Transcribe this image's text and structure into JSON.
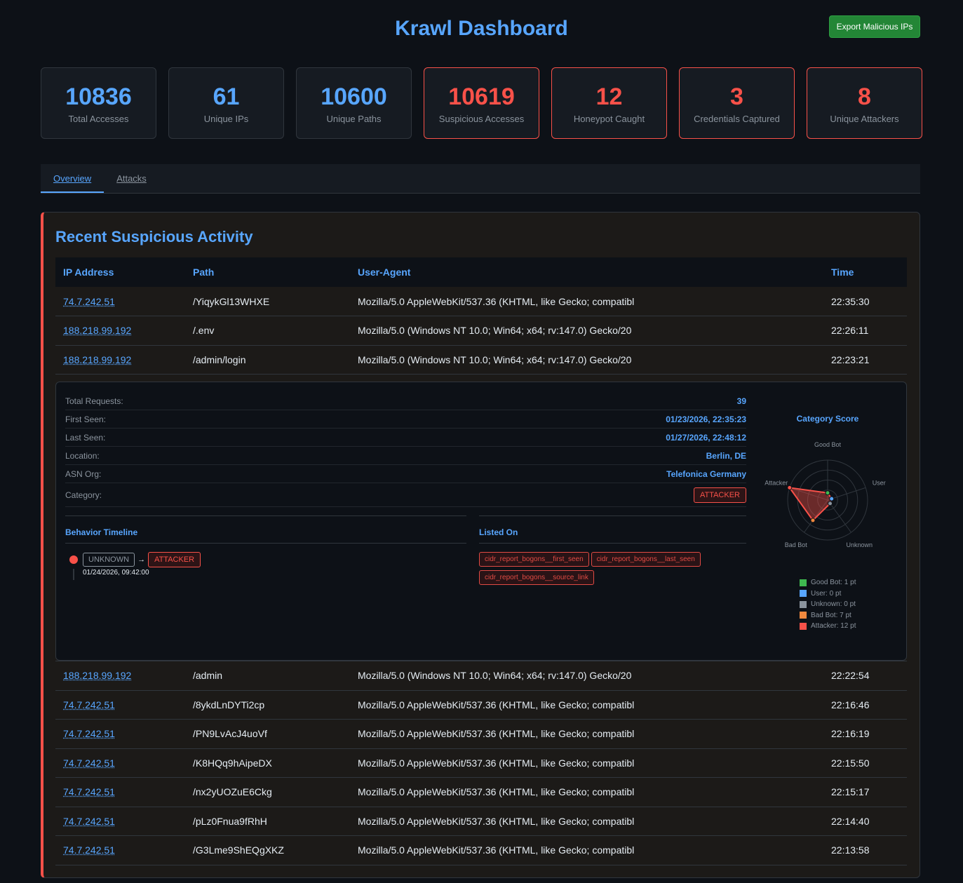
{
  "header": {
    "title": "Krawl Dashboard",
    "export_label": "Export Malicious IPs"
  },
  "stats": [
    {
      "value": "10836",
      "label": "Total Accesses",
      "alert": false
    },
    {
      "value": "61",
      "label": "Unique IPs",
      "alert": false
    },
    {
      "value": "10600",
      "label": "Unique Paths",
      "alert": false
    },
    {
      "value": "10619",
      "label": "Suspicious Accesses",
      "alert": true
    },
    {
      "value": "12",
      "label": "Honeypot Caught",
      "alert": true
    },
    {
      "value": "3",
      "label": "Credentials Captured",
      "alert": true
    },
    {
      "value": "8",
      "label": "Unique Attackers",
      "alert": true
    }
  ],
  "tabs": [
    {
      "label": "Overview",
      "active": true
    },
    {
      "label": "Attacks",
      "active": false
    }
  ],
  "section": {
    "title": "Recent Suspicious Activity",
    "columns": [
      "IP Address",
      "Path",
      "User-Agent",
      "Time"
    ],
    "rows": [
      {
        "ip": "74.7.242.51",
        "path": "/YiqykGl13WHXE",
        "ua": "Mozilla/5.0 AppleWebKit/537.36 (KHTML, like Gecko; compatibl",
        "time": "22:35:30"
      },
      {
        "ip": "188.218.99.192",
        "path": "/.env",
        "ua": "Mozilla/5.0 (Windows NT 10.0; Win64; x64; rv:147.0) Gecko/20",
        "time": "22:26:11"
      },
      {
        "ip": "188.218.99.192",
        "path": "/admin/login",
        "ua": "Mozilla/5.0 (Windows NT 10.0; Win64; x64; rv:147.0) Gecko/20",
        "time": "22:23:21",
        "expanded": true
      },
      {
        "ip": "188.218.99.192",
        "path": "/admin",
        "ua": "Mozilla/5.0 (Windows NT 10.0; Win64; x64; rv:147.0) Gecko/20",
        "time": "22:22:54"
      },
      {
        "ip": "74.7.242.51",
        "path": "/8ykdLnDYTi2cp",
        "ua": "Mozilla/5.0 AppleWebKit/537.36 (KHTML, like Gecko; compatibl",
        "time": "22:16:46"
      },
      {
        "ip": "74.7.242.51",
        "path": "/PN9LvAcJ4uoVf",
        "ua": "Mozilla/5.0 AppleWebKit/537.36 (KHTML, like Gecko; compatibl",
        "time": "22:16:19"
      },
      {
        "ip": "74.7.242.51",
        "path": "/K8HQq9hAipeDX",
        "ua": "Mozilla/5.0 AppleWebKit/537.36 (KHTML, like Gecko; compatibl",
        "time": "22:15:50"
      },
      {
        "ip": "74.7.242.51",
        "path": "/nx2yUOZuE6Ckg",
        "ua": "Mozilla/5.0 AppleWebKit/537.36 (KHTML, like Gecko; compatibl",
        "time": "22:15:17"
      },
      {
        "ip": "74.7.242.51",
        "path": "/pLz0Fnua9fRhH",
        "ua": "Mozilla/5.0 AppleWebKit/537.36 (KHTML, like Gecko; compatibl",
        "time": "22:14:40"
      },
      {
        "ip": "74.7.242.51",
        "path": "/G3Lme9ShEQgXKZ",
        "ua": "Mozilla/5.0 AppleWebKit/537.36 (KHTML, like Gecko; compatibl",
        "time": "22:13:58"
      }
    ]
  },
  "detail": {
    "fields": [
      {
        "label": "Total Requests:",
        "value": "39"
      },
      {
        "label": "First Seen:",
        "value": "01/23/2026, 22:35:23"
      },
      {
        "label": "Last Seen:",
        "value": "01/27/2026, 22:48:12"
      },
      {
        "label": "Location:",
        "value": "Berlin, DE"
      },
      {
        "label": "ASN Org:",
        "value": "Telefonica Germany"
      }
    ],
    "category_label": "Category:",
    "category": "ATTACKER",
    "timeline_title": "Behavior Timeline",
    "timeline_from": "UNKNOWN",
    "timeline_arrow": "→",
    "timeline_to": "ATTACKER",
    "timeline_time": "01/24/2026, 09:42:00",
    "listed_title": "Listed On",
    "listed": [
      "cidr_report_bogons__first_seen",
      "cidr_report_bogons__last_seen",
      "cidr_report_bogons__source_link"
    ],
    "chart_title": "Category Score"
  },
  "chart_data": {
    "type": "radar",
    "title": "Category Score",
    "categories": [
      "Good Bot",
      "User",
      "Unknown",
      "Bad Bot",
      "Attacker"
    ],
    "values": [
      1,
      0,
      0,
      7,
      12
    ],
    "colors": [
      "#3fb950",
      "#58a6ff",
      "#8b949e",
      "#f0883e",
      "#f85149"
    ],
    "legend": [
      "Good Bot: 1 pt",
      "User: 0 pt",
      "Unknown: 0 pt",
      "Bad Bot: 7 pt",
      "Attacker: 12 pt"
    ]
  }
}
